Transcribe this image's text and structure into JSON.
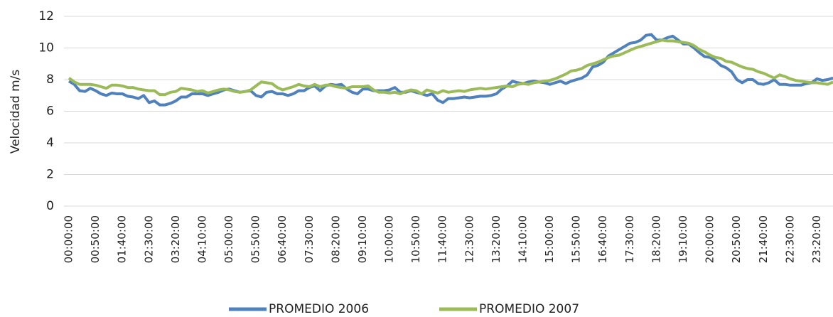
{
  "chart_data": {
    "type": "line",
    "y_label": "Velocidad m/s",
    "categories": [
      "00:00:00",
      null,
      null,
      null,
      null,
      "00:50:00",
      null,
      null,
      null,
      null,
      "01:40:00",
      null,
      null,
      null,
      null,
      "02:30:00",
      null,
      null,
      null,
      null,
      "03:20:00",
      null,
      null,
      null,
      null,
      "04:10:00",
      null,
      null,
      null,
      null,
      "05:00:00",
      null,
      null,
      null,
      null,
      "05:50:00",
      null,
      null,
      null,
      null,
      "06:40:00",
      null,
      null,
      null,
      null,
      "07:30:00",
      null,
      null,
      null,
      null,
      "08:20:00",
      null,
      null,
      null,
      null,
      "09:10:00",
      null,
      null,
      null,
      null,
      "10:00:00",
      null,
      null,
      null,
      null,
      "10:50:00",
      null,
      null,
      null,
      null,
      "11:40:00",
      null,
      null,
      null,
      null,
      "12:30:00",
      null,
      null,
      null,
      null,
      "13:20:00",
      null,
      null,
      null,
      null,
      "14:10:00",
      null,
      null,
      null,
      null,
      "15:00:00",
      null,
      null,
      null,
      null,
      "15:50:00",
      null,
      null,
      null,
      null,
      "16:40:00",
      null,
      null,
      null,
      null,
      "17:30:00",
      null,
      null,
      null,
      null,
      "18:20:00",
      null,
      null,
      null,
      null,
      "19:10:00",
      null,
      null,
      null,
      null,
      "20:00:00",
      null,
      null,
      null,
      null,
      "20:50:00",
      null,
      null,
      null,
      null,
      "21:40:00",
      null,
      null,
      null,
      null,
      "22:30:00",
      null,
      null,
      null,
      null,
      "23:20:00",
      null,
      null,
      null
    ],
    "series": [
      {
        "name": "PROMEDIO 2006",
        "color": "#4f81bd",
        "values": [
          7.9,
          7.7,
          7.3,
          7.25,
          7.45,
          7.3,
          7.1,
          7.0,
          7.15,
          7.1,
          7.1,
          6.95,
          6.9,
          6.8,
          7.0,
          6.55,
          6.65,
          6.4,
          6.4,
          6.5,
          6.65,
          6.9,
          6.9,
          7.1,
          7.1,
          7.1,
          7.0,
          7.1,
          7.2,
          7.35,
          7.4,
          7.3,
          7.2,
          7.25,
          7.3,
          7.0,
          6.9,
          7.2,
          7.25,
          7.1,
          7.1,
          7.0,
          7.1,
          7.3,
          7.3,
          7.5,
          7.6,
          7.3,
          7.6,
          7.7,
          7.65,
          7.7,
          7.4,
          7.2,
          7.1,
          7.4,
          7.4,
          7.3,
          7.3,
          7.3,
          7.35,
          7.5,
          7.2,
          7.2,
          7.3,
          7.2,
          7.1,
          7.0,
          7.1,
          6.7,
          6.55,
          6.8,
          6.8,
          6.85,
          6.9,
          6.85,
          6.9,
          6.95,
          6.95,
          7.0,
          7.1,
          7.4,
          7.6,
          7.9,
          7.8,
          7.75,
          7.85,
          7.9,
          7.85,
          7.8,
          7.7,
          7.8,
          7.9,
          7.75,
          7.9,
          8.0,
          8.1,
          8.3,
          8.8,
          8.9,
          9.1,
          9.5,
          9.7,
          9.9,
          10.1,
          10.3,
          10.35,
          10.5,
          10.8,
          10.85,
          10.5,
          10.5,
          10.65,
          10.75,
          10.5,
          10.25,
          10.25,
          10.0,
          9.7,
          9.45,
          9.4,
          9.2,
          8.9,
          8.75,
          8.5,
          8.0,
          7.8,
          8.0,
          8.0,
          7.75,
          7.7,
          7.8,
          8.0,
          7.7,
          7.7,
          7.65,
          7.65,
          7.65,
          7.75,
          7.8,
          8.05,
          7.95,
          8.0,
          8.1
        ]
      },
      {
        "name": "PROMEDIO 2007",
        "color": "#9bbb59",
        "values": [
          8.1,
          7.85,
          7.7,
          7.7,
          7.7,
          7.65,
          7.55,
          7.45,
          7.65,
          7.65,
          7.6,
          7.5,
          7.5,
          7.4,
          7.35,
          7.3,
          7.3,
          7.05,
          7.05,
          7.2,
          7.25,
          7.45,
          7.4,
          7.35,
          7.25,
          7.3,
          7.15,
          7.25,
          7.35,
          7.4,
          7.35,
          7.25,
          7.2,
          7.25,
          7.35,
          7.6,
          7.85,
          7.8,
          7.75,
          7.5,
          7.35,
          7.45,
          7.55,
          7.7,
          7.6,
          7.55,
          7.7,
          7.55,
          7.65,
          7.65,
          7.55,
          7.5,
          7.45,
          7.55,
          7.55,
          7.55,
          7.6,
          7.35,
          7.2,
          7.2,
          7.15,
          7.2,
          7.1,
          7.25,
          7.35,
          7.3,
          7.1,
          7.35,
          7.25,
          7.15,
          7.3,
          7.2,
          7.25,
          7.3,
          7.25,
          7.35,
          7.4,
          7.45,
          7.4,
          7.45,
          7.5,
          7.55,
          7.6,
          7.55,
          7.7,
          7.75,
          7.7,
          7.8,
          7.85,
          7.9,
          7.95,
          8.05,
          8.2,
          8.35,
          8.55,
          8.6,
          8.7,
          8.9,
          9.0,
          9.1,
          9.25,
          9.4,
          9.5,
          9.55,
          9.7,
          9.85,
          10.0,
          10.1,
          10.2,
          10.3,
          10.4,
          10.5,
          10.45,
          10.45,
          10.4,
          10.35,
          10.3,
          10.15,
          9.9,
          9.75,
          9.55,
          9.4,
          9.35,
          9.15,
          9.1,
          8.95,
          8.8,
          8.7,
          8.65,
          8.5,
          8.4,
          8.25,
          8.1,
          8.3,
          8.2,
          8.05,
          7.95,
          7.9,
          7.85,
          7.8,
          7.8,
          7.75,
          7.7,
          7.85
        ]
      }
    ],
    "ylim": [
      0,
      12
    ],
    "yticks": [
      0,
      2,
      4,
      6,
      8,
      10,
      12
    ],
    "grid": true,
    "legend": "bottom"
  }
}
